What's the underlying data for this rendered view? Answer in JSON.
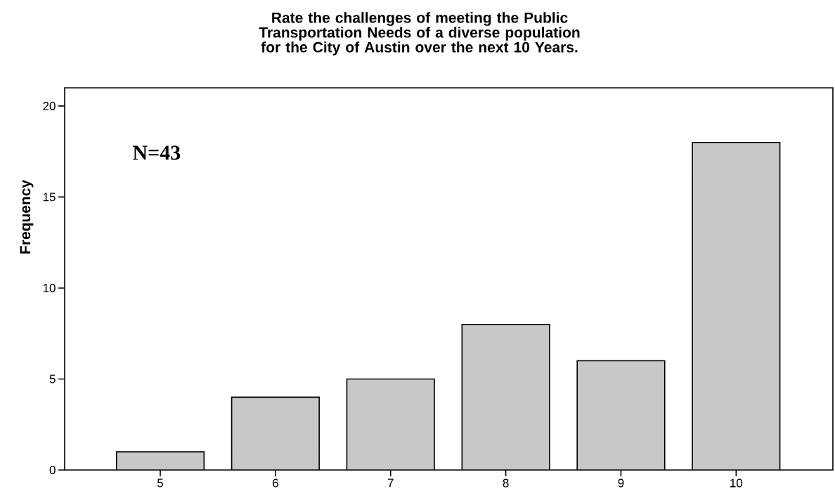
{
  "chart_data": {
    "type": "bar",
    "title": "Rate the challenges of meeting the Public Transportation Needs of a diverse population for the City of Austin over the next 10 Years.",
    "ylabel": "Frequency",
    "categories": [
      "5",
      "6",
      "7",
      "8",
      "9",
      "10"
    ],
    "values": [
      1,
      4,
      5,
      8,
      6,
      18
    ],
    "color": "#c8c8c8",
    "ylim": [
      0,
      21
    ],
    "yticks": [
      0,
      5,
      10,
      15,
      20
    ],
    "grid": false,
    "annotations": [
      "N=43"
    ]
  }
}
